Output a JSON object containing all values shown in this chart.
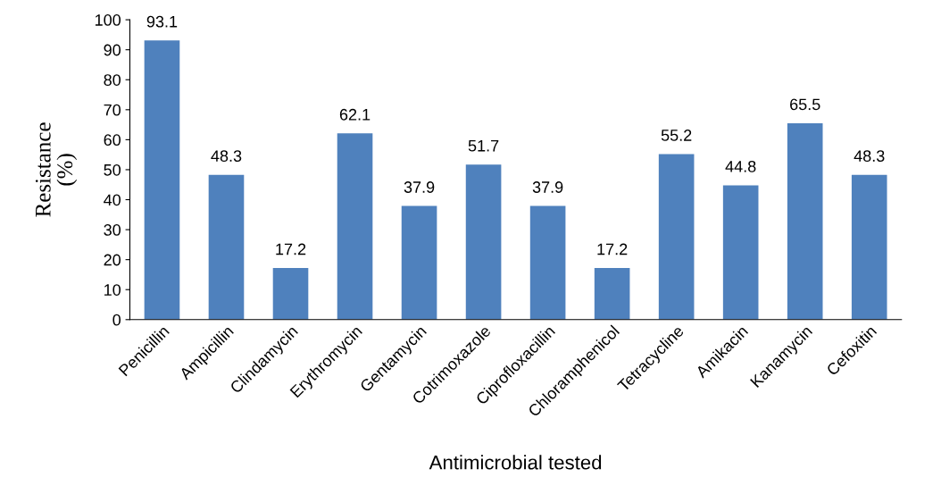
{
  "chart_data": {
    "type": "bar",
    "categories": [
      "Penicillin",
      "Ampicillin",
      "Clindamycin",
      "Erythromycin",
      "Gentamycin",
      "Cotrimoxazole",
      "Ciprofloxacillin",
      "Chloramphenicol",
      "Tetracycline",
      "Amikacin",
      "Kanamycin",
      "Cefoxitin"
    ],
    "values": [
      93.1,
      48.3,
      17.2,
      62.1,
      37.9,
      51.7,
      37.9,
      17.2,
      55.2,
      44.8,
      65.5,
      48.3
    ],
    "color": "#4f81bd",
    "xlabel": "Antimicrobial tested",
    "ylabel": "Resistance\n(%)",
    "ylim": [
      0,
      100
    ],
    "yticks": [
      0,
      10,
      20,
      30,
      40,
      50,
      60,
      70,
      80,
      90,
      100
    ],
    "data_labels": true
  }
}
